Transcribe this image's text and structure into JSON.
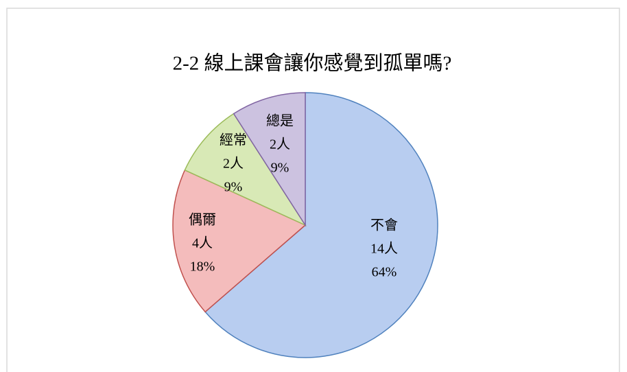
{
  "chart_data": {
    "type": "pie",
    "title": "2-2 線上課會讓你感覺到孤單嗎?",
    "categories": [
      "不會",
      "偶爾",
      "經常",
      "總是"
    ],
    "values": [
      14,
      4,
      2,
      2
    ],
    "value_labels": [
      "14人",
      "4人",
      "2人",
      "2人"
    ],
    "percent_labels": [
      "64%",
      "18%",
      "9%",
      "9%"
    ],
    "colors": [
      "#b8cdf0",
      "#f4bcbc",
      "#d8e9b6",
      "#ccc2e0"
    ],
    "stroke_colors": [
      "#4f81bd",
      "#c0504d",
      "#9bbb59",
      "#8064a2"
    ]
  }
}
